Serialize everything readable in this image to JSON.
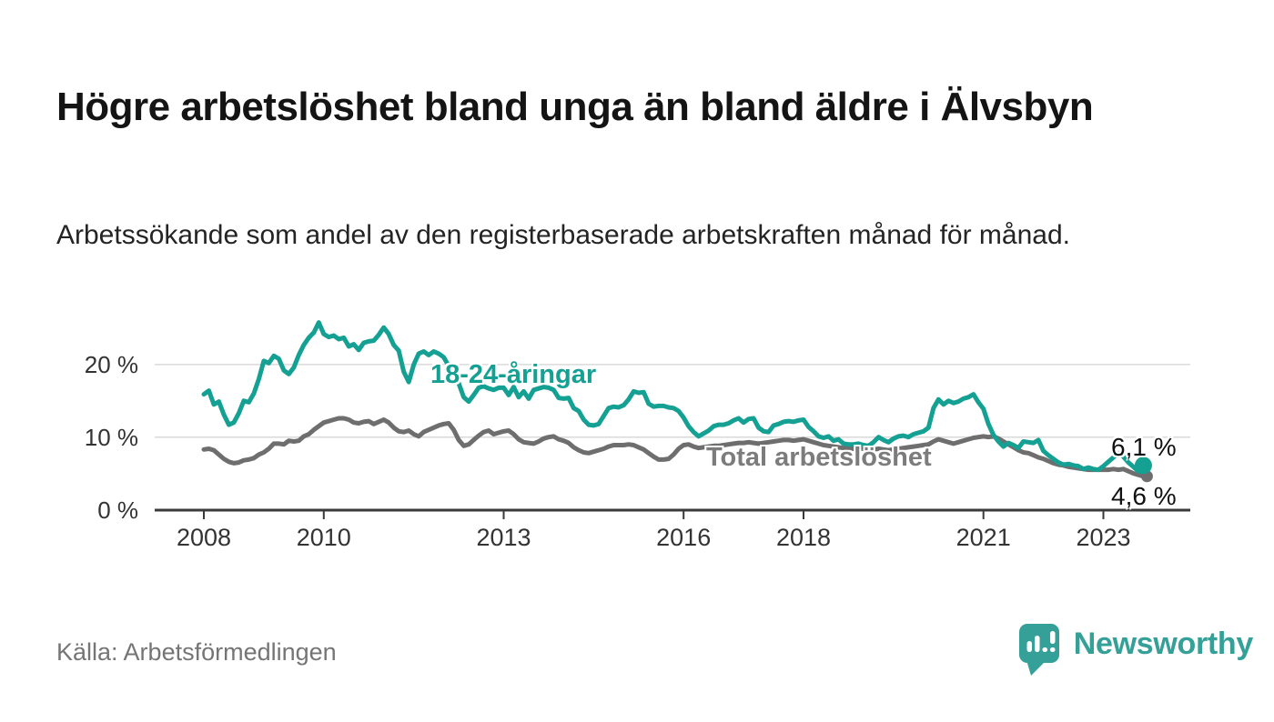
{
  "header": {
    "title": "Högre arbetslöshet bland unga än bland äldre i Älvsbyn",
    "subtitle": "Arbetssökande som andel av den registerbaserade arbetskraften månad för månad."
  },
  "footer": {
    "source": "Källa: Arbetsförmedlingen",
    "logo_text": "Newsworthy"
  },
  "colors": {
    "young_series": "#14a092",
    "total_series": "#6e6e6e",
    "total_label": "#7c7c7c",
    "axis": "#3a3a3a",
    "gridline": "#d9d9d9",
    "logo": "#35a098"
  },
  "chart_data": {
    "type": "line",
    "title": "Högre arbetslöshet bland unga än bland äldre i Älvsbyn",
    "subtitle": "Arbetssökande som andel av den registerbaserade arbetskraften månad för månad.",
    "unit": "%",
    "frequency": "monthly",
    "x_start": "2008-01",
    "x_end": "2023-09",
    "grid": true,
    "grid_values": [
      10,
      20
    ],
    "ylim": [
      0,
      27
    ],
    "x_ticks": [
      {
        "label": "2008",
        "year": 2008
      },
      {
        "label": "2010",
        "year": 2010
      },
      {
        "label": "2013",
        "year": 2013
      },
      {
        "label": "2016",
        "year": 2016
      },
      {
        "label": "2018",
        "year": 2018
      },
      {
        "label": "2021",
        "year": 2021
      },
      {
        "label": "2023",
        "year": 2023
      }
    ],
    "y_ticks": [
      {
        "label": "0 %",
        "value": 0
      },
      {
        "label": "10 %",
        "value": 10
      },
      {
        "label": "20 %",
        "value": 20
      }
    ],
    "series": [
      {
        "name": "18-24-åringar",
        "color": "#14a092",
        "end_value": 6.1,
        "end_label": "6,1 %",
        "values": [
          15.9,
          16.4,
          14.5,
          14.9,
          13.1,
          11.7,
          12.0,
          13.3,
          15.0,
          14.8,
          16.0,
          18.0,
          20.5,
          20.2,
          21.2,
          20.8,
          19.2,
          18.7,
          19.6,
          21.3,
          22.7,
          23.7,
          24.4,
          25.8,
          24.2,
          23.8,
          24.0,
          23.5,
          23.7,
          22.5,
          22.8,
          22.0,
          23.0,
          23.2,
          23.3,
          24.1,
          25.1,
          24.2,
          22.7,
          21.9,
          19.0,
          17.6,
          20.0,
          21.5,
          21.8,
          21.3,
          21.8,
          21.5,
          21.0,
          19.8,
          19.2,
          17.4,
          15.5,
          14.9,
          15.8,
          16.8,
          17.0,
          16.7,
          16.5,
          16.8,
          16.8,
          15.8,
          16.9,
          15.5,
          16.3,
          15.3,
          16.5,
          16.7,
          16.9,
          16.8,
          16.5,
          15.4,
          15.3,
          15.4,
          14.0,
          13.6,
          12.4,
          11.7,
          11.6,
          11.8,
          12.9,
          14.0,
          14.2,
          14.1,
          14.4,
          15.2,
          16.3,
          16.1,
          16.2,
          14.6,
          14.2,
          14.3,
          14.3,
          14.1,
          14.0,
          13.6,
          12.7,
          11.5,
          10.7,
          10.1,
          10.5,
          10.9,
          11.5,
          11.7,
          11.7,
          11.9,
          12.3,
          12.6,
          12.0,
          12.5,
          12.6,
          11.3,
          10.8,
          10.7,
          11.6,
          11.8,
          12.1,
          12.2,
          12.1,
          12.3,
          12.4,
          11.4,
          10.8,
          10.1,
          9.9,
          10.1,
          9.5,
          9.7,
          9.1,
          9.0,
          9.0,
          9.1,
          8.9,
          8.8,
          9.3,
          10.0,
          9.6,
          9.3,
          9.8,
          10.1,
          10.2,
          10.0,
          10.4,
          10.6,
          10.8,
          11.3,
          14.0,
          15.2,
          14.5,
          15.0,
          14.7,
          14.9,
          15.3,
          15.5,
          15.9,
          14.8,
          13.9,
          11.8,
          10.3,
          9.4,
          8.7,
          9.2,
          8.9,
          8.5,
          9.4,
          9.3,
          9.2,
          9.6,
          8.1,
          7.5,
          7.0,
          6.5,
          6.2,
          6.3,
          6.1,
          6.0,
          5.6,
          5.8,
          5.6,
          5.5,
          6.0,
          6.6,
          7.2,
          7.8,
          7.3,
          6.5,
          5.9,
          5.3,
          6.1
        ]
      },
      {
        "name": "Total arbetslöshet",
        "color": "#6e6e6e",
        "end_value": 4.6,
        "end_label": "4,6 %",
        "values": [
          8.3,
          8.4,
          8.2,
          7.6,
          7.0,
          6.6,
          6.4,
          6.5,
          6.8,
          6.9,
          7.1,
          7.6,
          7.9,
          8.4,
          9.1,
          9.1,
          9.0,
          9.5,
          9.4,
          9.5,
          10.1,
          10.4,
          11.0,
          11.5,
          12.0,
          12.2,
          12.4,
          12.6,
          12.6,
          12.4,
          12.0,
          11.9,
          12.1,
          12.2,
          11.8,
          12.1,
          12.4,
          12.0,
          11.3,
          10.8,
          10.7,
          10.9,
          10.4,
          10.1,
          10.7,
          11.0,
          11.3,
          11.6,
          11.8,
          11.9,
          11.0,
          9.6,
          8.8,
          9.0,
          9.6,
          10.2,
          10.7,
          10.9,
          10.4,
          10.6,
          10.8,
          10.9,
          10.4,
          9.7,
          9.3,
          9.2,
          9.1,
          9.4,
          9.8,
          10.0,
          10.1,
          9.7,
          9.5,
          9.2,
          8.6,
          8.2,
          7.9,
          7.8,
          8.0,
          8.2,
          8.4,
          8.7,
          8.9,
          8.9,
          8.9,
          9.0,
          8.9,
          8.6,
          8.3,
          7.8,
          7.3,
          6.9,
          6.9,
          7.0,
          7.6,
          8.4,
          8.9,
          9.0,
          8.7,
          8.5,
          8.6,
          8.7,
          8.8,
          8.8,
          8.9,
          9.0,
          9.1,
          9.2,
          9.2,
          9.3,
          9.2,
          9.1,
          9.2,
          9.3,
          9.4,
          9.5,
          9.6,
          9.6,
          9.5,
          9.6,
          9.7,
          9.5,
          9.3,
          9.1,
          8.9,
          8.8,
          8.7,
          8.6,
          8.5,
          8.4,
          8.4,
          8.5,
          8.4,
          8.3,
          8.3,
          8.4,
          8.3,
          8.2,
          8.3,
          8.4,
          8.5,
          8.6,
          8.7,
          8.8,
          8.9,
          9.0,
          9.4,
          9.7,
          9.5,
          9.3,
          9.1,
          9.3,
          9.5,
          9.7,
          9.9,
          10.0,
          10.1,
          10.0,
          10.1,
          9.8,
          9.4,
          9.0,
          8.6,
          8.2,
          7.9,
          7.8,
          7.5,
          7.2,
          7.0,
          6.7,
          6.4,
          6.2,
          6.1,
          5.9,
          5.8,
          5.7,
          5.6,
          5.5,
          5.5,
          5.5,
          5.5,
          5.5,
          5.6,
          5.5,
          5.6,
          5.3,
          5.0,
          4.8,
          4.6
        ]
      }
    ]
  }
}
